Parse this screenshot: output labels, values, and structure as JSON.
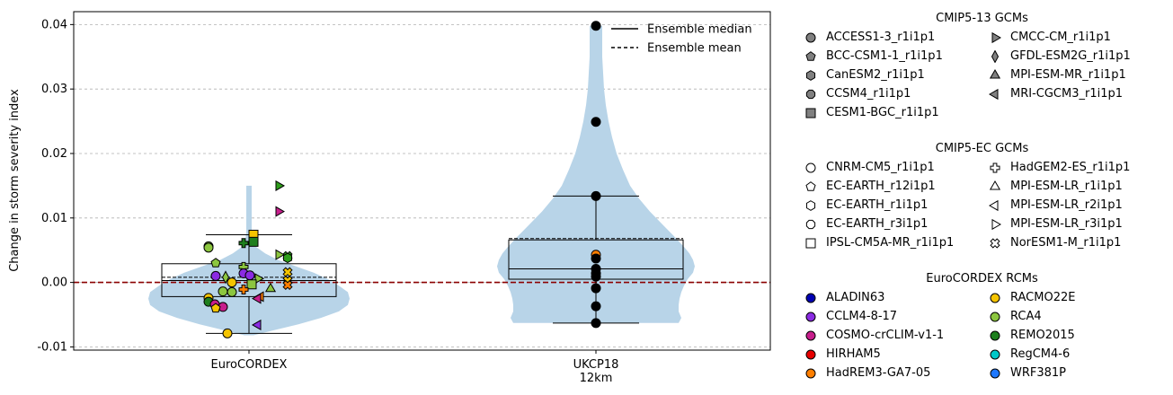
{
  "chart_data": {
    "type": "violin",
    "ylabel": "Change in storm severity index",
    "xlabel": "",
    "ylim": [
      -0.0105,
      0.042
    ],
    "yticks": [
      "-0.01",
      "0.00",
      "0.01",
      "0.02",
      "0.03",
      "0.04"
    ],
    "ytick_values": [
      -0.01,
      0.0,
      0.01,
      0.02,
      0.03,
      0.04
    ],
    "grid": "horizontal dashed",
    "zero_line_color": "#8b0000",
    "violin_color": "#b8d4e8",
    "categories": [
      "EuroCORDEX",
      "UKCP18\n12km"
    ],
    "legend_lines": [
      {
        "label": "Ensemble median",
        "style": "solid"
      },
      {
        "label": "Ensemble mean",
        "style": "dashed"
      }
    ],
    "groups": [
      {
        "name": "EuroCORDEX",
        "box": {
          "q1": -0.0022,
          "median": 0.0003,
          "mean": 0.0008,
          "q3": 0.0029,
          "whisker_low": -0.0079,
          "whisker_high": 0.0074
        },
        "points": [
          {
            "y": 0.015,
            "shape": "triangle-right",
            "color": "#2e9e1a"
          },
          {
            "y": 0.011,
            "shape": "triangle-right",
            "color": "#c71e8c"
          },
          {
            "y": 0.0074,
            "shape": "square",
            "color": "#f5c400"
          },
          {
            "y": 0.0063,
            "shape": "square",
            "color": "#1e7f1e"
          },
          {
            "y": 0.0061,
            "shape": "plus",
            "color": "#1e7f1e"
          },
          {
            "y": 0.0056,
            "shape": "circle",
            "color": "#8cc63f"
          },
          {
            "y": 0.0054,
            "shape": "circle",
            "color": "#8cc63f"
          },
          {
            "y": 0.0043,
            "shape": "triangle-right",
            "color": "#8cc63f"
          },
          {
            "y": 0.0041,
            "shape": "cross",
            "color": "#2e9e1a"
          },
          {
            "y": 0.0038,
            "shape": "hexagon",
            "color": "#2e9e1a"
          },
          {
            "y": 0.003,
            "shape": "pentagon",
            "color": "#8cc63f"
          },
          {
            "y": 0.0024,
            "shape": "plus",
            "color": "#8cc63f"
          },
          {
            "y": 0.0016,
            "shape": "cross",
            "color": "#f5c400"
          },
          {
            "y": 0.0014,
            "shape": "circle",
            "color": "#8a2be2"
          },
          {
            "y": 0.0011,
            "shape": "circle",
            "color": "#8a2be2"
          },
          {
            "y": 0.001,
            "shape": "circle",
            "color": "#8a2be2"
          },
          {
            "y": 0.0008,
            "shape": "diamond",
            "color": "#8cc63f"
          },
          {
            "y": 0.0006,
            "shape": "triangle-right",
            "color": "#8cc63f"
          },
          {
            "y": 0.0003,
            "shape": "cross",
            "color": "#f5c400"
          },
          {
            "y": 0.0,
            "shape": "circle",
            "color": "#f5c400"
          },
          {
            "y": -0.0003,
            "shape": "square",
            "color": "#8cc63f"
          },
          {
            "y": -0.0004,
            "shape": "cross",
            "color": "#ff7f00"
          },
          {
            "y": -0.001,
            "shape": "triangle-up",
            "color": "#8cc63f"
          },
          {
            "y": -0.0011,
            "shape": "plus",
            "color": "#ff7f00"
          },
          {
            "y": -0.0014,
            "shape": "circle",
            "color": "#8cc63f"
          },
          {
            "y": -0.0015,
            "shape": "circle",
            "color": "#8cc63f"
          },
          {
            "y": -0.0022,
            "shape": "triangle-left",
            "color": "#ff7f00"
          },
          {
            "y": -0.0024,
            "shape": "circle",
            "color": "#f5c400"
          },
          {
            "y": -0.0025,
            "shape": "triangle-left",
            "color": "#c71e8c"
          },
          {
            "y": -0.003,
            "shape": "circle",
            "color": "#1e7f1e"
          },
          {
            "y": -0.0034,
            "shape": "circle",
            "color": "#c71e8c"
          },
          {
            "y": -0.0038,
            "shape": "circle",
            "color": "#c71e8c"
          },
          {
            "y": -0.004,
            "shape": "pentagon",
            "color": "#f5c400"
          },
          {
            "y": -0.0066,
            "shape": "triangle-left",
            "color": "#8a2be2"
          },
          {
            "y": -0.0079,
            "shape": "circle",
            "color": "#f5c400"
          }
        ]
      },
      {
        "name": "UKCP18 12km",
        "box": {
          "q1": 0.0005,
          "median": 0.0021,
          "mean": 0.0068,
          "q3": 0.0066,
          "whisker_low": -0.0063,
          "whisker_high": 0.0134
        },
        "points": [
          {
            "y": 0.0398,
            "shape": "circle",
            "color": "#000000"
          },
          {
            "y": 0.0249,
            "shape": "circle",
            "color": "#000000"
          },
          {
            "y": 0.0134,
            "shape": "circle",
            "color": "#000000"
          },
          {
            "y": 0.0043,
            "shape": "circle",
            "color": "#ff7f00"
          },
          {
            "y": 0.0037,
            "shape": "circle",
            "color": "#000000"
          },
          {
            "y": 0.0021,
            "shape": "circle",
            "color": "#000000"
          },
          {
            "y": 0.0014,
            "shape": "circle",
            "color": "#000000"
          },
          {
            "y": 0.0009,
            "shape": "circle",
            "color": "#000000"
          },
          {
            "y": -0.0009,
            "shape": "circle",
            "color": "#000000"
          },
          {
            "y": -0.0037,
            "shape": "circle",
            "color": "#000000"
          },
          {
            "y": -0.0063,
            "shape": "circle",
            "color": "#000000"
          }
        ]
      }
    ]
  },
  "legend": {
    "cmip5_13": {
      "title": "CMIP5-13 GCMs",
      "items": [
        {
          "label": "ACCESS1-3_r1i1p1",
          "shape": "circle",
          "color": "#808080"
        },
        {
          "label": "CMCC-CM_r1i1p1",
          "shape": "triangle-right",
          "color": "#808080"
        },
        {
          "label": "BCC-CSM1-1_r1i1p1",
          "shape": "pentagon",
          "color": "#808080"
        },
        {
          "label": "GFDL-ESM2G_r1i1p1",
          "shape": "diamond",
          "color": "#808080"
        },
        {
          "label": "CanESM2_r1i1p1",
          "shape": "hexagon",
          "color": "#808080"
        },
        {
          "label": "MPI-ESM-MR_r1i1p1",
          "shape": "triangle-up",
          "color": "#808080"
        },
        {
          "label": "CCSM4_r1i1p1",
          "shape": "octagon",
          "color": "#808080"
        },
        {
          "label": "MRI-CGCM3_r1i1p1",
          "shape": "triangle-left",
          "color": "#808080"
        },
        {
          "label": "CESM1-BGC_r1i1p1",
          "shape": "square",
          "color": "#808080"
        }
      ]
    },
    "cmip5_ec": {
      "title": "CMIP5-EC GCMs",
      "items": [
        {
          "label": "CNRM-CM5_r1i1p1",
          "shape": "circle",
          "color": "#ffffff"
        },
        {
          "label": "HadGEM2-ES_r1i1p1",
          "shape": "plus",
          "color": "#ffffff"
        },
        {
          "label": "EC-EARTH_r12i1p1",
          "shape": "pentagon",
          "color": "#ffffff"
        },
        {
          "label": "MPI-ESM-LR_r1i1p1",
          "shape": "triangle-up",
          "color": "#ffffff"
        },
        {
          "label": "EC-EARTH_r1i1p1",
          "shape": "hexagon",
          "color": "#ffffff"
        },
        {
          "label": "MPI-ESM-LR_r2i1p1",
          "shape": "triangle-left",
          "color": "#ffffff"
        },
        {
          "label": "EC-EARTH_r3i1p1",
          "shape": "octagon",
          "color": "#ffffff"
        },
        {
          "label": "MPI-ESM-LR_r3i1p1",
          "shape": "triangle-right",
          "color": "#ffffff"
        },
        {
          "label": "IPSL-CM5A-MR_r1i1p1",
          "shape": "square",
          "color": "#ffffff"
        },
        {
          "label": "NorESM1-M_r1i1p1",
          "shape": "cross",
          "color": "#ffffff"
        }
      ]
    },
    "eurocordex": {
      "title": "EuroCORDEX RCMs",
      "items": [
        {
          "label": "ALADIN63",
          "shape": "circle",
          "color": "#0000b3"
        },
        {
          "label": "RACMO22E",
          "shape": "circle",
          "color": "#f5c400"
        },
        {
          "label": "CCLM4-8-17",
          "shape": "circle",
          "color": "#8a2be2"
        },
        {
          "label": "RCA4",
          "shape": "circle",
          "color": "#8cc63f"
        },
        {
          "label": "COSMO-crCLIM-v1-1",
          "shape": "circle",
          "color": "#c71e8c"
        },
        {
          "label": "REMO2015",
          "shape": "circle",
          "color": "#1e7f1e"
        },
        {
          "label": "HIRHAM5",
          "shape": "circle",
          "color": "#e60000"
        },
        {
          "label": "RegCM4-6",
          "shape": "circle",
          "color": "#00c8c8"
        },
        {
          "label": "HadREM3-GA7-05",
          "shape": "circle",
          "color": "#ff7f00"
        },
        {
          "label": "WRF381P",
          "shape": "circle",
          "color": "#1e78ff"
        }
      ]
    }
  }
}
